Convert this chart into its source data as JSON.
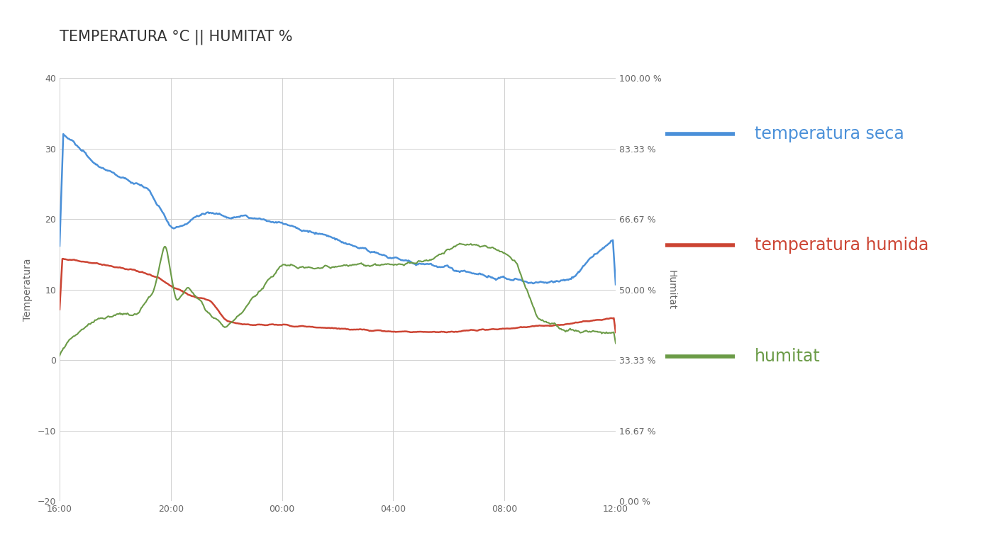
{
  "title": "TEMPERATURA °C || HUMITAT %",
  "ylabel_left": "Temperatura",
  "ylabel_right": "Humitat",
  "ylim_left": [
    -20,
    40
  ],
  "ylim_right": [
    0.0,
    100.0
  ],
  "yticks_left": [
    -20,
    -10,
    0,
    10,
    20,
    30,
    40
  ],
  "yticks_right": [
    0.0,
    16.67,
    33.33,
    50.0,
    66.67,
    83.33,
    100.0
  ],
  "ytick_labels_right": [
    "0.00 %",
    "16.67 %",
    "33.33 %",
    "50.00 %",
    "66.67 %",
    "83.33 %",
    "100.00 %"
  ],
  "xtick_labels": [
    "16:00",
    "20:00",
    "00:00",
    "04:00",
    "08:00",
    "12:00"
  ],
  "color_blue": "#4A90D9",
  "color_red": "#CC4433",
  "color_green": "#6B9B47",
  "legend_labels": [
    "temperatura seca",
    "temperatura humida",
    "humitat"
  ],
  "legend_colors": [
    "#4A90D9",
    "#CC4433",
    "#6B9B47"
  ],
  "background_color": "#ffffff",
  "grid_color": "#d0d0d0",
  "title_fontsize": 15,
  "label_fontsize": 10,
  "legend_fontsize": 17,
  "tick_fontsize": 9
}
